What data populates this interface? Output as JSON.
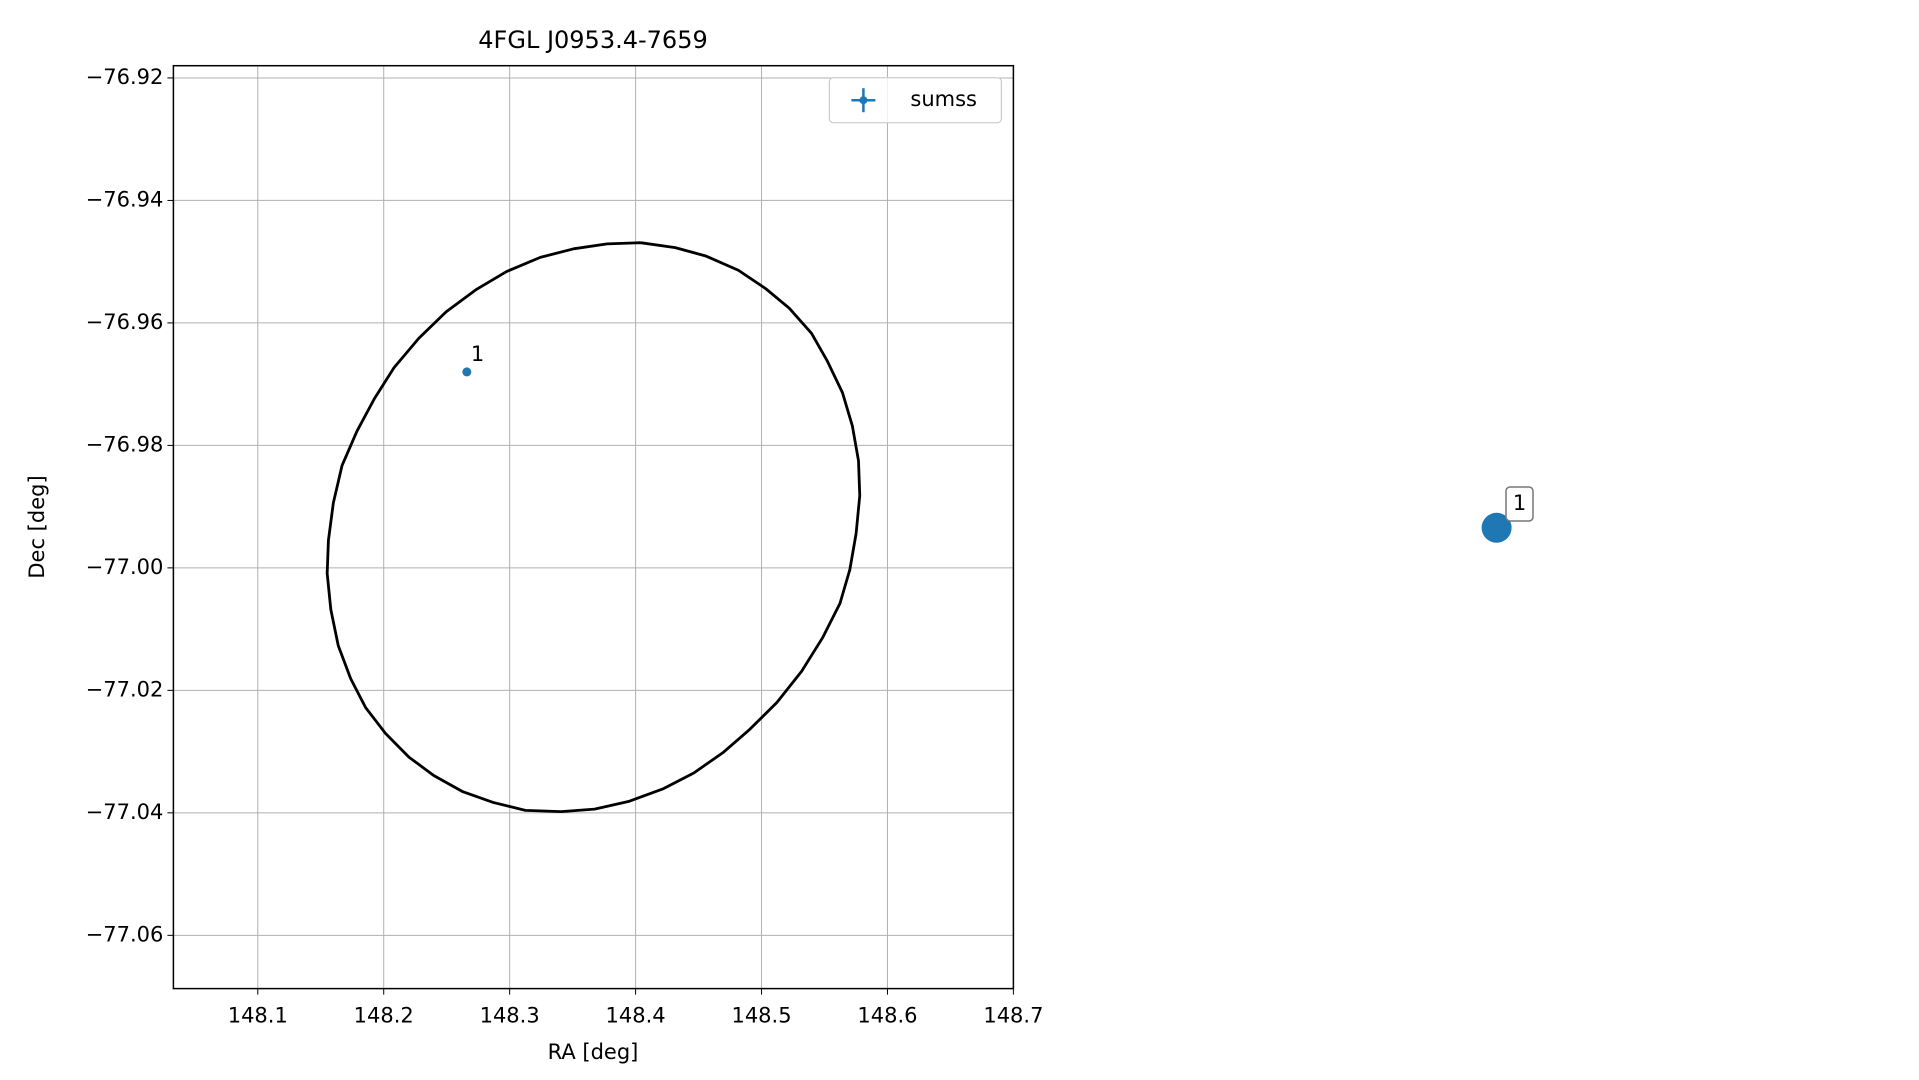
{
  "chart_data": {
    "type": "scatter",
    "title": "4FGL J0953.4-7659",
    "x_label": "RA [deg]",
    "y_label": "Dec [deg]",
    "xlim": [
      148.033,
      148.7
    ],
    "ylim": [
      -77.0687,
      -76.918
    ],
    "xticks": [
      148.1,
      148.2,
      148.3,
      148.4,
      148.5,
      148.6,
      148.7
    ],
    "yticks": [
      {
        "value": -76.92,
        "label": "−76.92"
      },
      {
        "value": -76.94,
        "label": "−76.94"
      },
      {
        "value": -76.96,
        "label": "−76.96"
      },
      {
        "value": -76.98,
        "label": "−76.98"
      },
      {
        "value": -77.0,
        "label": "−77.00"
      },
      {
        "value": -77.02,
        "label": "−77.02"
      },
      {
        "value": -77.04,
        "label": "−77.04"
      },
      {
        "value": -77.06,
        "label": "−77.06"
      }
    ],
    "grid": true,
    "legend": "upper right",
    "series": [
      {
        "name": "sumss",
        "color": "#1f77b4",
        "x": [
          148.266
        ],
        "y": [
          -76.968
        ],
        "labels": [
          "1"
        ]
      }
    ],
    "ellipse": {
      "color": "#000000",
      "x": [
        148.4039,
        148.4315,
        148.4561,
        148.4816,
        148.5033,
        148.522,
        148.5397,
        148.5524,
        148.5643,
        148.5721,
        148.577,
        148.578,
        148.5751,
        148.5701,
        148.5623,
        148.5485,
        148.5318,
        148.5121,
        148.4905,
        148.4698,
        148.4462,
        148.4216,
        148.3951,
        148.3675,
        148.341,
        148.3125,
        148.2869,
        148.2623,
        148.2397,
        148.22,
        148.2013,
        148.1856,
        148.1738,
        148.1639,
        148.158,
        148.1551,
        148.1561,
        148.16,
        148.1669,
        148.1787,
        148.1925,
        148.2082,
        148.2279,
        148.2495,
        148.2731,
        148.2977,
        148.3243,
        148.3508,
        148.3774,
        148.4039
      ],
      "y": [
        -76.9469,
        -76.9477,
        -76.9491,
        -76.9514,
        -76.9544,
        -76.9576,
        -76.9617,
        -76.9663,
        -76.9714,
        -76.9768,
        -76.9825,
        -76.9882,
        -76.9944,
        -77.0003,
        -77.0058,
        -77.0114,
        -77.0169,
        -77.022,
        -77.0264,
        -77.0301,
        -77.0335,
        -77.0361,
        -77.0381,
        -77.0394,
        -77.0398,
        -77.0396,
        -77.0383,
        -77.0365,
        -77.0339,
        -77.0309,
        -77.027,
        -77.0228,
        -77.0181,
        -77.0127,
        -77.0068,
        -77.0009,
        -76.9955,
        -76.9894,
        -76.9833,
        -76.9777,
        -76.9724,
        -76.9673,
        -76.9625,
        -76.9582,
        -76.9546,
        -76.9516,
        -76.9493,
        -76.9479,
        -76.9471,
        -76.9469
      ]
    }
  }
}
